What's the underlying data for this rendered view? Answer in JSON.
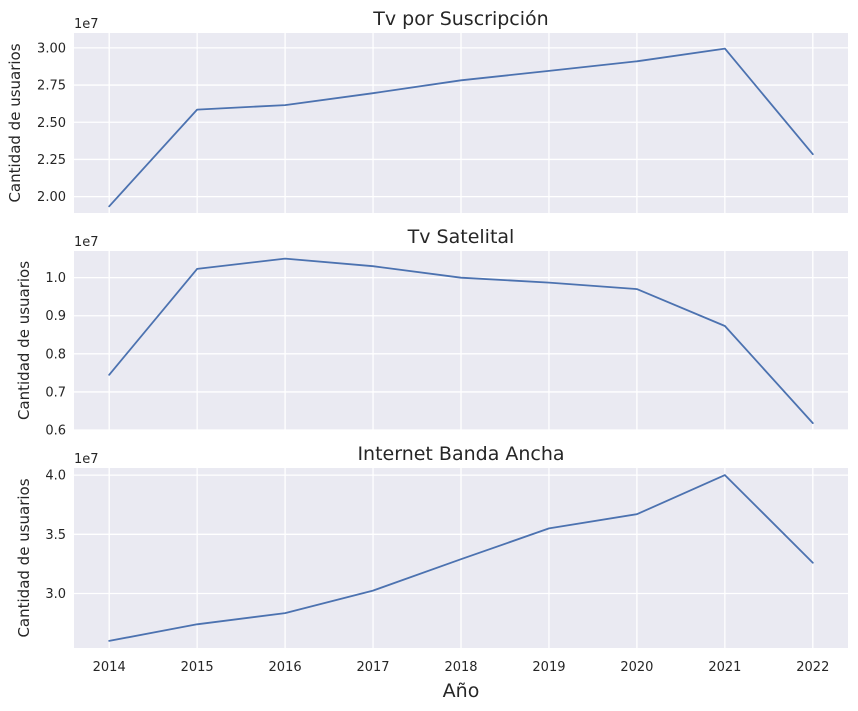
{
  "chart_data": [
    {
      "type": "line",
      "title": "Tv por Suscripción",
      "ylabel": "Cantidad de usuarios",
      "offset_text": "1e7",
      "x": [
        2014,
        2015,
        2016,
        2017,
        2018,
        2019,
        2020,
        2021,
        2022
      ],
      "values": [
        19350000,
        25850000,
        26150000,
        26950000,
        27820000,
        28450000,
        29100000,
        29950000,
        22850000
      ],
      "ylim": [
        18900000,
        31000000
      ],
      "yticks": [
        20000000,
        22500000,
        25000000,
        27500000,
        30000000
      ],
      "ytick_labels": [
        "2.00",
        "2.25",
        "2.50",
        "2.75",
        "3.00"
      ],
      "color": "#4c72b0"
    },
    {
      "type": "line",
      "title": "Tv Satelital",
      "ylabel": "Cantidad de usuarios",
      "offset_text": "1e7",
      "x": [
        2014,
        2015,
        2016,
        2017,
        2018,
        2019,
        2020,
        2021,
        2022
      ],
      "values": [
        7450000,
        10230000,
        10500000,
        10300000,
        10000000,
        9870000,
        9700000,
        8730000,
        6180000
      ],
      "ylim": [
        6000000,
        10700000
      ],
      "yticks": [
        6000000,
        7000000,
        8000000,
        9000000,
        10000000
      ],
      "ytick_labels": [
        "0.6",
        "0.7",
        "0.8",
        "0.9",
        "1.0"
      ],
      "color": "#4c72b0"
    },
    {
      "type": "line",
      "title": "Internet Banda Ancha",
      "ylabel": "Cantidad de usuarios",
      "offset_text": "1e7",
      "x": [
        2014,
        2015,
        2016,
        2017,
        2018,
        2019,
        2020,
        2021,
        2022
      ],
      "values": [
        26000000,
        27400000,
        28350000,
        30250000,
        32900000,
        35500000,
        36700000,
        40000000,
        32600000
      ],
      "ylim": [
        25400000,
        40600000
      ],
      "yticks": [
        30000000,
        35000000,
        40000000
      ],
      "ytick_labels": [
        "3.0",
        "3.5",
        "4.0"
      ],
      "color": "#4c72b0"
    }
  ],
  "shared_x": {
    "xlabel": "Año",
    "xlim": [
      2013.6,
      2022.4
    ],
    "xticks": [
      2014,
      2015,
      2016,
      2017,
      2018,
      2019,
      2020,
      2021,
      2022
    ],
    "xtick_labels": [
      "2014",
      "2015",
      "2016",
      "2017",
      "2018",
      "2019",
      "2020",
      "2021",
      "2022"
    ]
  }
}
